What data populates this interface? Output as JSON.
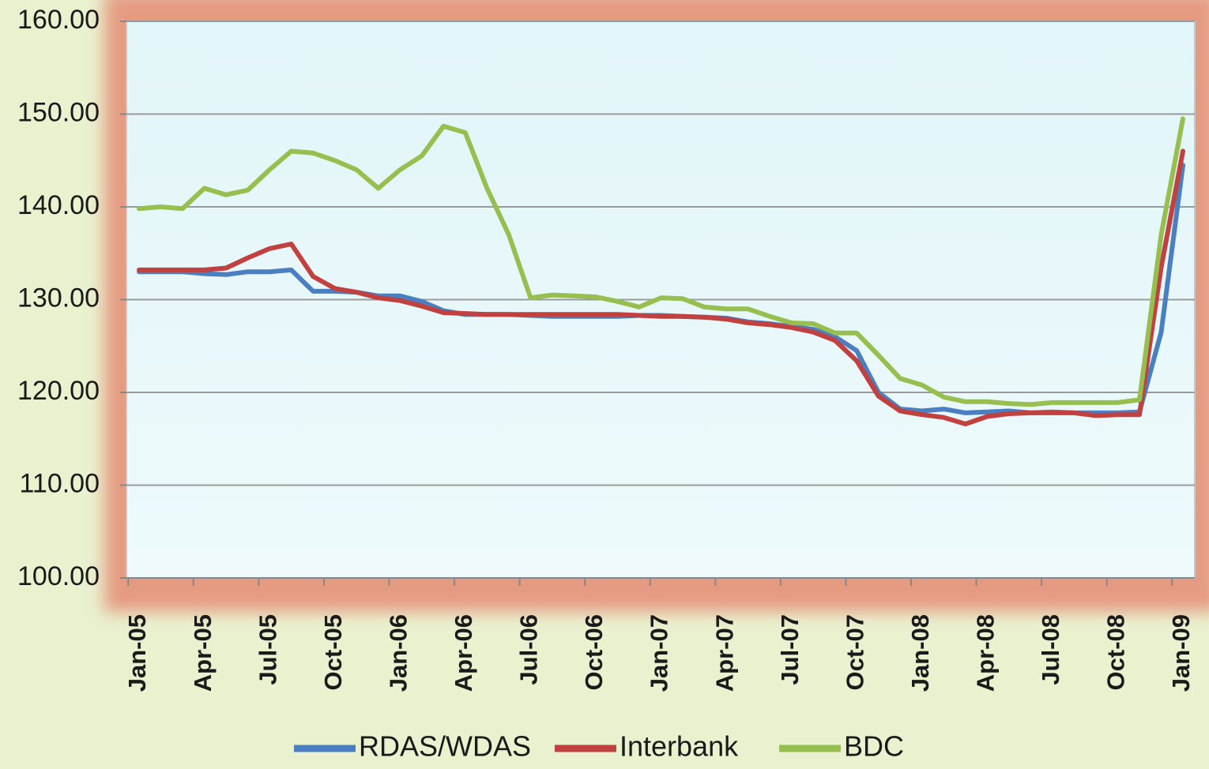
{
  "chart_data": {
    "type": "line",
    "categories": [
      "Jan-05",
      null,
      null,
      "Apr-05",
      null,
      null,
      "Jul-05",
      null,
      null,
      "Oct-05",
      null,
      null,
      "Jan-06",
      null,
      null,
      "Apr-06",
      null,
      null,
      "Jul-06",
      null,
      null,
      "Oct-06",
      null,
      null,
      "Jan-07",
      null,
      null,
      "Apr-07",
      null,
      null,
      "Jul-07",
      null,
      null,
      "Oct-07",
      null,
      null,
      "Jan-08",
      null,
      null,
      "Apr-08",
      null,
      null,
      "Jul-08",
      null,
      null,
      "Oct-08",
      null,
      null,
      "Jan-09"
    ],
    "series": [
      {
        "name": "RDAS/WDAS",
        "color": "#4a7fc1",
        "values": [
          133.0,
          133.0,
          133.0,
          132.8,
          132.7,
          133.0,
          133.0,
          133.2,
          130.9,
          130.9,
          130.8,
          130.4,
          130.4,
          129.8,
          128.8,
          128.4,
          128.4,
          128.4,
          128.3,
          128.2,
          128.2,
          128.2,
          128.2,
          128.3,
          128.3,
          128.2,
          128.1,
          128.0,
          127.6,
          127.4,
          127.1,
          126.8,
          126.0,
          124.5,
          120.0,
          118.2,
          118.0,
          118.2,
          117.8,
          117.9,
          118.0,
          117.8,
          117.9,
          117.8,
          117.8,
          117.8,
          117.9,
          126.5,
          144.5
        ]
      },
      {
        "name": "Interbank",
        "color": "#c0413f",
        "values": [
          133.2,
          133.2,
          133.2,
          133.2,
          133.4,
          134.5,
          135.5,
          136.0,
          132.5,
          131.2,
          130.8,
          130.2,
          129.9,
          129.3,
          128.6,
          128.5,
          128.4,
          128.4,
          128.4,
          128.4,
          128.4,
          128.4,
          128.4,
          128.3,
          128.2,
          128.2,
          128.1,
          127.9,
          127.5,
          127.3,
          127.0,
          126.5,
          125.6,
          123.4,
          119.6,
          118.0,
          117.6,
          117.3,
          116.6,
          117.4,
          117.7,
          117.8,
          117.8,
          117.8,
          117.5,
          117.6,
          117.6,
          133.5,
          146.0
        ]
      },
      {
        "name": "BDC",
        "color": "#96bf4f",
        "values": [
          139.8,
          140.0,
          139.8,
          142.0,
          141.3,
          141.8,
          144.0,
          146.0,
          145.8,
          145.0,
          144.0,
          142.0,
          144.0,
          145.5,
          148.7,
          148.0,
          142.0,
          137.0,
          130.2,
          130.5,
          130.4,
          130.3,
          129.8,
          129.2,
          130.2,
          130.1,
          129.2,
          129.0,
          129.0,
          128.2,
          127.5,
          127.4,
          126.4,
          126.4,
          124.0,
          121.5,
          120.8,
          119.5,
          119.0,
          119.0,
          118.8,
          118.7,
          118.9,
          118.9,
          118.9,
          118.9,
          119.2,
          137.0,
          149.5
        ]
      }
    ],
    "ylim": [
      100,
      160
    ],
    "yticks": [
      {
        "value": 100,
        "label": "100.00"
      },
      {
        "value": 110,
        "label": "110.00"
      },
      {
        "value": 120,
        "label": "120.00"
      },
      {
        "value": 130,
        "label": "130.00"
      },
      {
        "value": 140,
        "label": "140.00"
      },
      {
        "value": 150,
        "label": "150.00"
      },
      {
        "value": 160,
        "label": "160.00"
      }
    ],
    "grid": true,
    "legend": "bottom"
  }
}
